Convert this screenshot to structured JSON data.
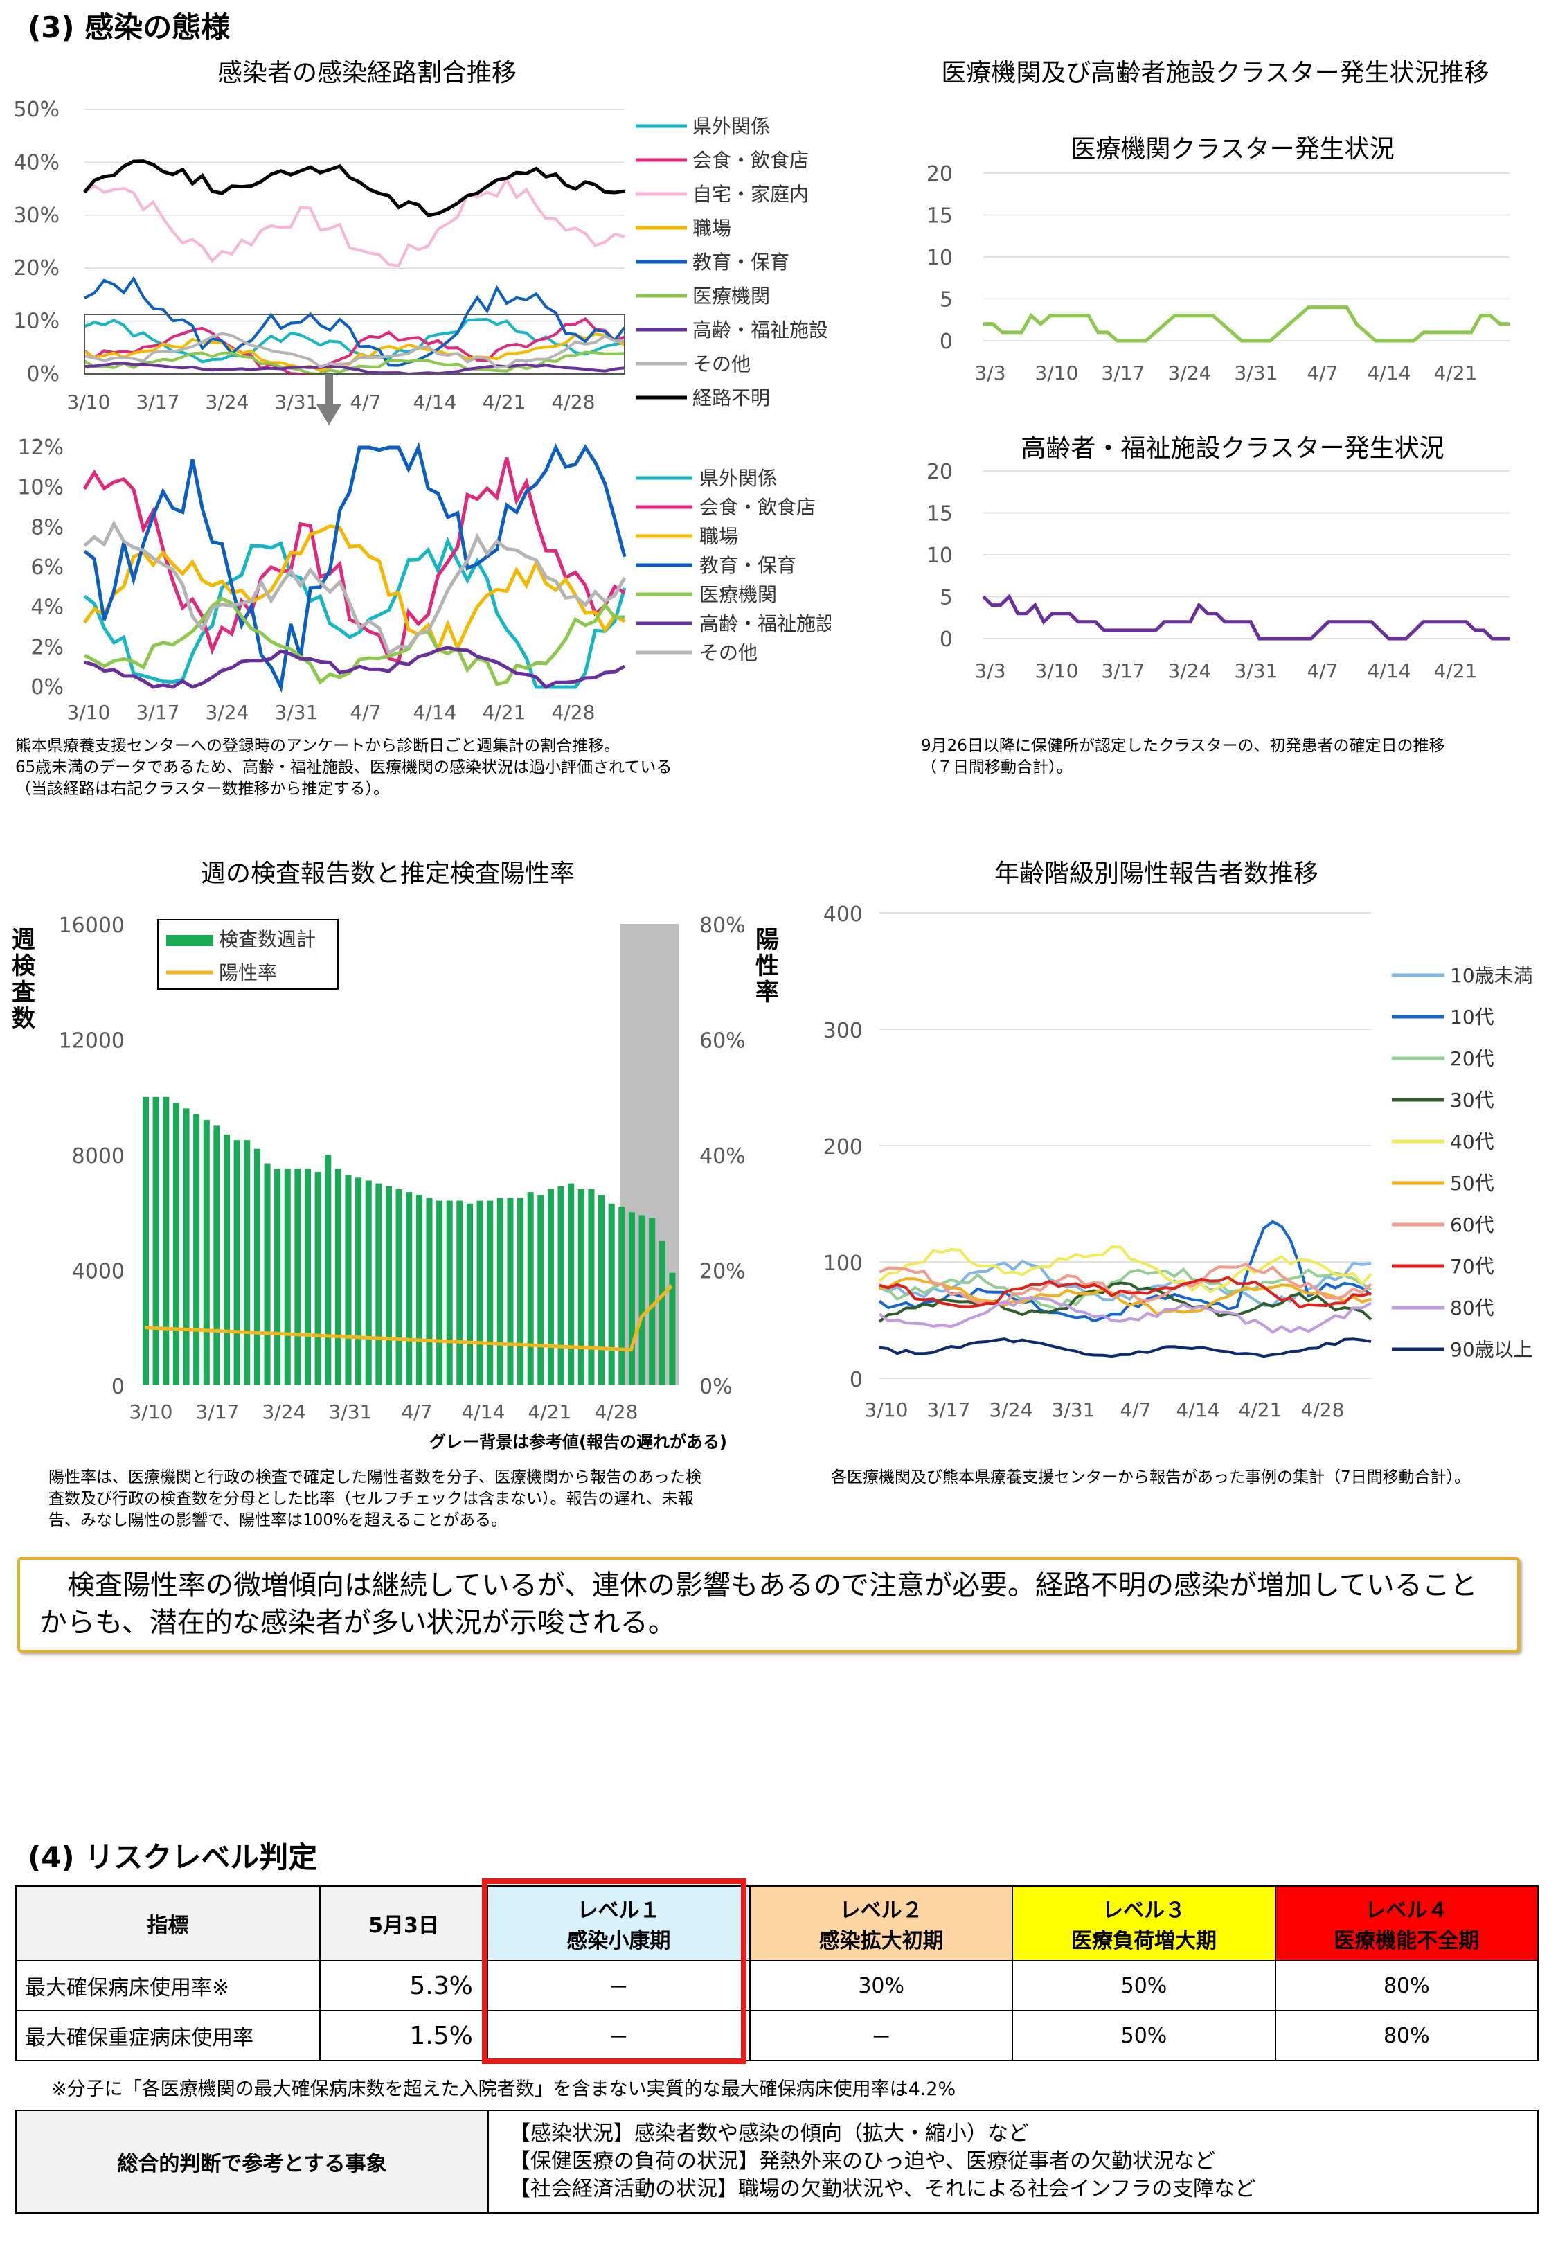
{
  "section3": {
    "title": "(3) 感染の態様",
    "route_chart": {
      "title": "感染者の感染経路割合推移",
      "y_ticks": [
        "50%",
        "40%",
        "30%",
        "20%",
        "10%",
        "0%"
      ],
      "x_ticks": [
        "3/10",
        "3/17",
        "3/24",
        "3/31",
        "4/7",
        "4/14",
        "4/21",
        "4/28"
      ],
      "legend": [
        "県外関係",
        "会食・飲食店",
        "自宅・家庭内",
        "職場",
        "教育・保育",
        "医療機関",
        "高齢・福祉施設",
        "その他",
        "経路不明"
      ],
      "zoom_y_ticks": [
        "12%",
        "10%",
        "8%",
        "6%",
        "4%",
        "2%",
        "0%"
      ],
      "zoom_legend": [
        "県外関係",
        "会食・飲食店",
        "職場",
        "教育・保育",
        "医療機関",
        "高齢・福祉施設",
        "その他"
      ],
      "note": "熊本県療養支援センターへの登録時のアンケートから診断日ごと週集計の割合推移。\n65歳未満のデータであるため、高齢・福祉施設、医療機関の感染状況は過小評価されている\n（当該経路は右記クラスター数推移から推定する）。"
    },
    "cluster_section_title": "医療機関及び高齢者施設クラスター発生状況推移",
    "medical_cluster": {
      "title": "医療機関クラスター発生状況",
      "y_ticks": [
        "20",
        "15",
        "10",
        "5",
        "0"
      ],
      "x_ticks": [
        "3/3",
        "3/10",
        "3/17",
        "3/24",
        "3/31",
        "4/7",
        "4/14",
        "4/21"
      ]
    },
    "elderly_cluster": {
      "title": "高齢者・福祉施設クラスター発生状況",
      "y_ticks": [
        "20",
        "15",
        "10",
        "5",
        "0"
      ],
      "x_ticks": [
        "3/3",
        "3/10",
        "3/17",
        "3/24",
        "3/31",
        "4/7",
        "4/14",
        "4/21"
      ]
    },
    "cluster_note": "9月26日以降に保健所が認定したクラスターの、初発患者の確定日の推移\n（７日間移動合計）。",
    "test_chart": {
      "title": "週の検査報告数と推定検査陽性率",
      "y_left_label": "週検査数",
      "y_right_label": "陽性率",
      "y_left_ticks": [
        "16000",
        "12000",
        "8000",
        "4000",
        "0"
      ],
      "y_right_ticks": [
        "80%",
        "60%",
        "40%",
        "20%",
        "0%"
      ],
      "x_ticks": [
        "3/10",
        "3/17",
        "3/24",
        "3/31",
        "4/7",
        "4/14",
        "4/21",
        "4/28"
      ],
      "legend": [
        "検査数週計",
        "陽性率"
      ],
      "gray_note": "グレー背景は参考値(報告の遅れがある)",
      "note": "陽性率は、医療機関と行政の検査で確定した陽性者数を分子、医療機関から報告のあった検\n査数及び行政の検査数を分母とした比率（セルフチェックは含まない）。報告の遅れ、未報\n告、みなし陽性の影響で、陽性率は100%を超えることがある。"
    },
    "age_chart": {
      "title": "年齢階級別陽性報告者数推移",
      "y_ticks": [
        "400",
        "300",
        "200",
        "100",
        "0"
      ],
      "x_ticks": [
        "3/10",
        "3/17",
        "3/24",
        "3/31",
        "4/7",
        "4/14",
        "4/21",
        "4/28"
      ],
      "legend": [
        "10歳未満",
        "10代",
        "20代",
        "30代",
        "40代",
        "50代",
        "60代",
        "70代",
        "80代",
        "90歳以上"
      ],
      "note": "各医療機関及び熊本県療養支援センターから報告があった事例の集計（7日間移動合計）。"
    },
    "summary": "　検査陽性率の微増傾向は継続しているが、連休の影響もあるので注意が必要。経路不明の感染が増加していることからも、潜在的な感染者が多い状況が示唆される。"
  },
  "section4": {
    "title": "(4) リスクレベル判定",
    "table": {
      "h_indicator": "指標",
      "h_date": "5月3日",
      "levels": [
        {
          "name": "レベル１",
          "sub": "感染小康期"
        },
        {
          "name": "レベル２",
          "sub": "感染拡大初期"
        },
        {
          "name": "レベル３",
          "sub": "医療負荷増大期"
        },
        {
          "name": "レベル４",
          "sub": "医療機能不全期"
        }
      ],
      "rows": [
        {
          "label": "最大確保病床使用率※",
          "value": "5.3%",
          "l1": "－",
          "l2": "30%",
          "l3": "50%",
          "l4": "80%"
        },
        {
          "label": "最大確保重症病床使用率",
          "value": "1.5%",
          "l1": "－",
          "l2": "－",
          "l3": "50%",
          "l4": "80%"
        }
      ]
    },
    "footnote": "※分子に「各医療機関の最大確保病床数を超えた入院者数」を含まない実質的な最大確保病床使用率は4.2%",
    "factors_label": "総合的判断で参考とする事象",
    "factors": [
      "【感染状況】感染者数や感染の傾向（拡大・縮小）など",
      "【保健医療の負荷の状況】発熱外来のひっ迫や、医療従事者の欠勤状況など",
      "【社会経済活動の状況】職場の欠勤状況や、それによる社会インフラの支障など"
    ]
  },
  "colors": {
    "route": [
      "#17b6c4",
      "#e0287c",
      "#f7b6d7",
      "#f5b800",
      "#0b5ec2",
      "#8cc84b",
      "#6a2f9e",
      "#b4b4b4",
      "#000000"
    ],
    "zoom": [
      "#17b6c4",
      "#e0287c",
      "#f5b800",
      "#0b5ec2",
      "#8cc84b",
      "#6a2f9e",
      "#b4b4b4"
    ],
    "age": [
      "#7fb5e8",
      "#1566d0",
      "#93ce95",
      "#2f5e2a",
      "#f2ea5a",
      "#f0b020",
      "#f39a8a",
      "#e0201b",
      "#c09be0",
      "#0d2a6e"
    ],
    "bar": "#1aaa55",
    "positivity": "#f2b51b",
    "medical": "#8cc84b",
    "elderly": "#6a2f9e",
    "level1": "#d8f1fa",
    "level2": "#fcd5a2",
    "level3": "#ffff00",
    "level4": "#ff0000",
    "summary_border": "#e8b020"
  }
}
